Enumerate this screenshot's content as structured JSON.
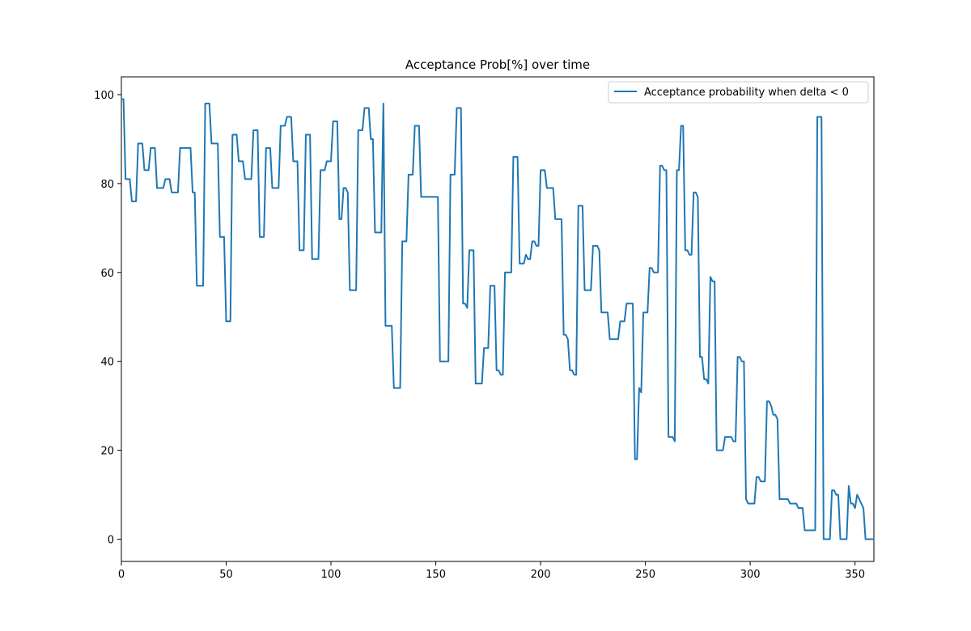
{
  "chart_data": {
    "type": "line",
    "title": "Acceptance Prob[%] over time",
    "xlabel": "",
    "ylabel": "",
    "xlim": [
      0,
      359
    ],
    "ylim": [
      -5,
      104
    ],
    "xticks": [
      0,
      50,
      100,
      150,
      200,
      250,
      300,
      350
    ],
    "yticks": [
      0,
      20,
      40,
      60,
      80,
      100
    ],
    "grid": false,
    "legend_position": "upper-right",
    "series": [
      {
        "name": "Acceptance probability when delta < 0",
        "color": "#1f77b4",
        "points": [
          [
            0,
            99
          ],
          [
            1,
            99
          ],
          [
            2,
            81
          ],
          [
            4,
            81
          ],
          [
            5,
            76
          ],
          [
            7,
            76
          ],
          [
            8,
            89
          ],
          [
            10,
            89
          ],
          [
            11,
            83
          ],
          [
            13,
            83
          ],
          [
            14,
            88
          ],
          [
            16,
            88
          ],
          [
            17,
            79
          ],
          [
            20,
            79
          ],
          [
            21,
            81
          ],
          [
            23,
            81
          ],
          [
            24,
            78
          ],
          [
            27,
            78
          ],
          [
            28,
            88
          ],
          [
            33,
            88
          ],
          [
            34,
            78
          ],
          [
            35,
            78
          ],
          [
            36,
            57
          ],
          [
            39,
            57
          ],
          [
            40,
            98
          ],
          [
            42,
            98
          ],
          [
            43,
            89
          ],
          [
            46,
            89
          ],
          [
            47,
            68
          ],
          [
            49,
            68
          ],
          [
            50,
            49
          ],
          [
            52,
            49
          ],
          [
            53,
            91
          ],
          [
            55,
            91
          ],
          [
            56,
            85
          ],
          [
            58,
            85
          ],
          [
            59,
            81
          ],
          [
            62,
            81
          ],
          [
            63,
            92
          ],
          [
            65,
            92
          ],
          [
            66,
            68
          ],
          [
            68,
            68
          ],
          [
            69,
            88
          ],
          [
            71,
            88
          ],
          [
            72,
            79
          ],
          [
            75,
            79
          ],
          [
            76,
            93
          ],
          [
            78,
            93
          ],
          [
            79,
            95
          ],
          [
            81,
            95
          ],
          [
            82,
            85
          ],
          [
            84,
            85
          ],
          [
            85,
            65
          ],
          [
            87,
            65
          ],
          [
            88,
            91
          ],
          [
            90,
            91
          ],
          [
            91,
            63
          ],
          [
            94,
            63
          ],
          [
            95,
            83
          ],
          [
            97,
            83
          ],
          [
            98,
            85
          ],
          [
            100,
            85
          ],
          [
            101,
            94
          ],
          [
            103,
            94
          ],
          [
            104,
            72
          ],
          [
            105,
            72
          ],
          [
            106,
            79
          ],
          [
            107,
            79
          ],
          [
            108,
            78
          ],
          [
            109,
            56
          ],
          [
            112,
            56
          ],
          [
            113,
            92
          ],
          [
            115,
            92
          ],
          [
            116,
            97
          ],
          [
            118,
            97
          ],
          [
            119,
            90
          ],
          [
            120,
            90
          ],
          [
            121,
            69
          ],
          [
            124,
            69
          ],
          [
            125,
            98
          ],
          [
            126,
            48
          ],
          [
            129,
            48
          ],
          [
            130,
            34
          ],
          [
            133,
            34
          ],
          [
            134,
            67
          ],
          [
            136,
            67
          ],
          [
            137,
            82
          ],
          [
            139,
            82
          ],
          [
            140,
            93
          ],
          [
            142,
            93
          ],
          [
            143,
            77
          ],
          [
            151,
            77
          ],
          [
            152,
            40
          ],
          [
            156,
            40
          ],
          [
            157,
            82
          ],
          [
            159,
            82
          ],
          [
            160,
            97
          ],
          [
            162,
            97
          ],
          [
            163,
            53
          ],
          [
            164,
            53
          ],
          [
            165,
            52
          ],
          [
            166,
            65
          ],
          [
            168,
            65
          ],
          [
            169,
            35
          ],
          [
            172,
            35
          ],
          [
            173,
            43
          ],
          [
            175,
            43
          ],
          [
            176,
            57
          ],
          [
            178,
            57
          ],
          [
            179,
            38
          ],
          [
            180,
            38
          ],
          [
            181,
            37
          ],
          [
            182,
            37
          ],
          [
            183,
            60
          ],
          [
            186,
            60
          ],
          [
            187,
            86
          ],
          [
            189,
            86
          ],
          [
            190,
            62
          ],
          [
            192,
            62
          ],
          [
            193,
            64
          ],
          [
            194,
            63
          ],
          [
            195,
            63
          ],
          [
            196,
            67
          ],
          [
            197,
            67
          ],
          [
            198,
            66
          ],
          [
            199,
            66
          ],
          [
            200,
            83
          ],
          [
            202,
            83
          ],
          [
            203,
            79
          ],
          [
            206,
            79
          ],
          [
            207,
            72
          ],
          [
            210,
            72
          ],
          [
            211,
            46
          ],
          [
            212,
            46
          ],
          [
            213,
            45
          ],
          [
            214,
            38
          ],
          [
            215,
            38
          ],
          [
            216,
            37
          ],
          [
            217,
            37
          ],
          [
            218,
            75
          ],
          [
            220,
            75
          ],
          [
            221,
            56
          ],
          [
            224,
            56
          ],
          [
            225,
            66
          ],
          [
            227,
            66
          ],
          [
            228,
            65
          ],
          [
            229,
            51
          ],
          [
            232,
            51
          ],
          [
            233,
            45
          ],
          [
            237,
            45
          ],
          [
            238,
            49
          ],
          [
            240,
            49
          ],
          [
            241,
            53
          ],
          [
            244,
            53
          ],
          [
            245,
            18
          ],
          [
            246,
            18
          ],
          [
            247,
            34
          ],
          [
            248,
            33
          ],
          [
            249,
            51
          ],
          [
            251,
            51
          ],
          [
            252,
            61
          ],
          [
            253,
            61
          ],
          [
            254,
            60
          ],
          [
            256,
            60
          ],
          [
            257,
            84
          ],
          [
            258,
            84
          ],
          [
            259,
            83
          ],
          [
            260,
            83
          ],
          [
            261,
            23
          ],
          [
            263,
            23
          ],
          [
            264,
            22
          ],
          [
            265,
            83
          ],
          [
            266,
            83
          ],
          [
            267,
            93
          ],
          [
            268,
            93
          ],
          [
            269,
            65
          ],
          [
            270,
            65
          ],
          [
            271,
            64
          ],
          [
            272,
            64
          ],
          [
            273,
            78
          ],
          [
            274,
            78
          ],
          [
            275,
            77
          ],
          [
            276,
            41
          ],
          [
            277,
            41
          ],
          [
            278,
            36
          ],
          [
            279,
            36
          ],
          [
            280,
            35
          ],
          [
            281,
            59
          ],
          [
            282,
            58
          ],
          [
            283,
            58
          ],
          [
            284,
            20
          ],
          [
            287,
            20
          ],
          [
            288,
            23
          ],
          [
            291,
            23
          ],
          [
            292,
            22
          ],
          [
            293,
            22
          ],
          [
            294,
            41
          ],
          [
            295,
            41
          ],
          [
            296,
            40
          ],
          [
            297,
            40
          ],
          [
            298,
            9
          ],
          [
            299,
            8
          ],
          [
            302,
            8
          ],
          [
            303,
            14
          ],
          [
            304,
            14
          ],
          [
            305,
            13
          ],
          [
            307,
            13
          ],
          [
            308,
            31
          ],
          [
            309,
            31
          ],
          [
            310,
            30
          ],
          [
            311,
            28
          ],
          [
            312,
            28
          ],
          [
            313,
            27
          ],
          [
            314,
            9
          ],
          [
            318,
            9
          ],
          [
            319,
            8
          ],
          [
            322,
            8
          ],
          [
            323,
            7
          ],
          [
            325,
            7
          ],
          [
            326,
            2
          ],
          [
            331,
            2
          ],
          [
            332,
            95
          ],
          [
            334,
            95
          ],
          [
            335,
            0
          ],
          [
            338,
            0
          ],
          [
            339,
            11
          ],
          [
            340,
            11
          ],
          [
            341,
            10
          ],
          [
            342,
            10
          ],
          [
            343,
            0
          ],
          [
            346,
            0
          ],
          [
            347,
            12
          ],
          [
            348,
            8
          ],
          [
            349,
            8
          ],
          [
            350,
            7
          ],
          [
            351,
            10
          ],
          [
            352,
            9
          ],
          [
            354,
            7
          ],
          [
            355,
            0
          ],
          [
            359,
            0
          ]
        ]
      }
    ]
  }
}
